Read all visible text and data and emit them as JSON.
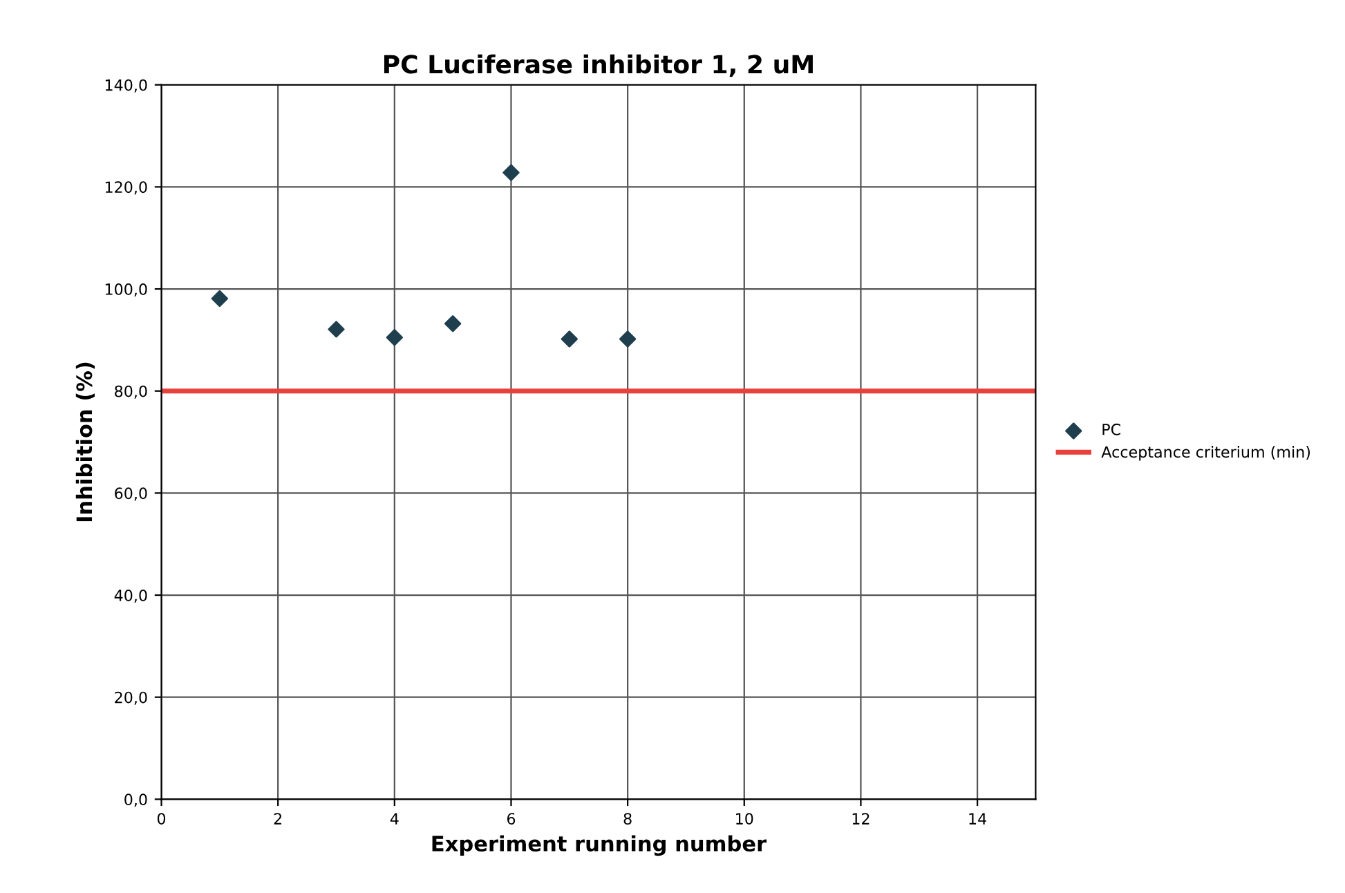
{
  "chart_data": {
    "type": "scatter",
    "title": "PC Luciferase inhibitor 1, 2 uM",
    "xlabel": "Experiment running number",
    "ylabel": "Inhibition (%)",
    "series": [
      {
        "name": "PC",
        "color": "#1f3f4f",
        "marker": "diamond",
        "x": [
          1,
          3,
          4,
          5,
          6,
          7,
          8
        ],
        "values": [
          98.1,
          92.1,
          90.5,
          93.2,
          122.8,
          90.2,
          90.2
        ]
      },
      {
        "name": "Acceptance criterium (min)",
        "type": "line",
        "color": "#e8413c",
        "marker": "none",
        "x": [
          0,
          15
        ],
        "values": [
          80,
          80
        ]
      }
    ],
    "xlim": [
      0,
      15
    ],
    "xticks": [
      0,
      2,
      4,
      6,
      8,
      10,
      12,
      14
    ],
    "ylim": [
      0,
      140
    ],
    "yticks": [
      {
        "value": 0,
        "label": "0,0"
      },
      {
        "value": 20,
        "label": "20,0"
      },
      {
        "value": 40,
        "label": "40,0"
      },
      {
        "value": 60,
        "label": "60,0"
      },
      {
        "value": 80,
        "label": "80,0"
      },
      {
        "value": 100,
        "label": "100,0"
      },
      {
        "value": 120,
        "label": "120,0"
      },
      {
        "value": 140,
        "label": "140,0"
      }
    ],
    "grid": true,
    "legend": "right"
  }
}
